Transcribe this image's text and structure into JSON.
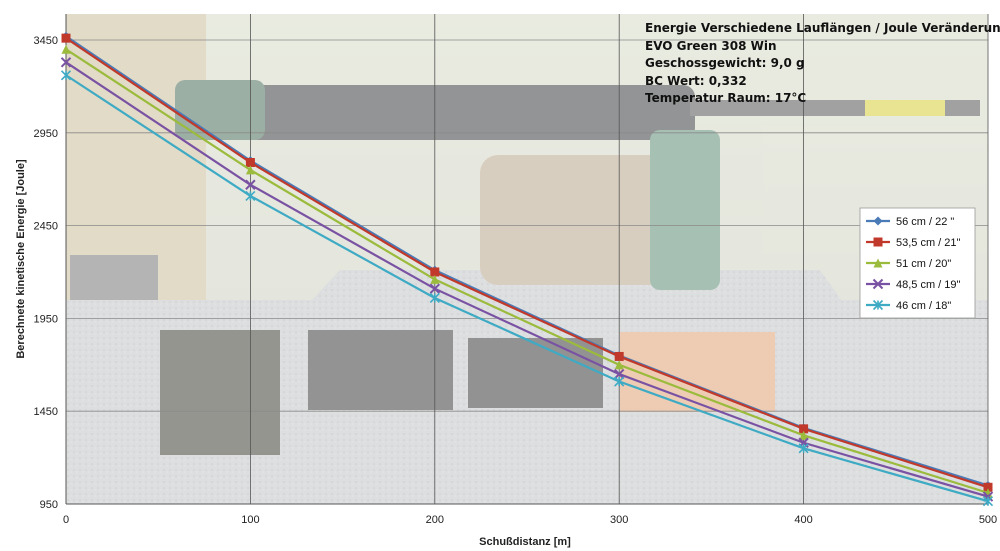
{
  "chart_data": {
    "type": "line",
    "title": "",
    "xlabel": "Schußdistanz [m]",
    "ylabel": "Berechnete kinetische Energie [Joule]",
    "x": [
      0,
      100,
      200,
      300,
      400,
      500
    ],
    "xlim": [
      0,
      500
    ],
    "ylim": [
      950,
      3450
    ],
    "xticks": [
      0,
      100,
      200,
      300,
      400,
      500
    ],
    "yticks": [
      950,
      1450,
      1950,
      2450,
      2950,
      3450
    ],
    "grid": "horizontal",
    "legend_position": "right",
    "annotations": [
      "Energie Verschiedene Lauflängen / Joule Veränderungen",
      "EVO Green 308 Win",
      "Geschossgewicht: 9,0 g",
      "BC Wert: 0,332",
      "Temperatur Raum: 17°C"
    ],
    "series": [
      {
        "name": "56 cm / 22 \"",
        "color": "#4a7bb7",
        "marker": "diamond",
        "values": [
          3470,
          2800,
          2210,
          1750,
          1360,
          1050
        ]
      },
      {
        "name": "53,5 cm / 21\"",
        "color": "#c0392b",
        "marker": "square",
        "values": [
          3460,
          2790,
          2200,
          1745,
          1355,
          1040
        ]
      },
      {
        "name": "51 cm / 20\"",
        "color": "#9bbb3c",
        "marker": "triangle",
        "values": [
          3400,
          2750,
          2160,
          1700,
          1320,
          1010
        ]
      },
      {
        "name": "48,5 cm / 19\"",
        "color": "#7a52a3",
        "marker": "x",
        "values": [
          3330,
          2670,
          2110,
          1650,
          1280,
          990
        ]
      },
      {
        "name": "46 cm / 18\"",
        "color": "#3eaac4",
        "marker": "star",
        "values": [
          3260,
          2610,
          2060,
          1610,
          1250,
          965
        ]
      }
    ]
  },
  "background": {
    "photo_description_icon": "rifle-photo"
  }
}
